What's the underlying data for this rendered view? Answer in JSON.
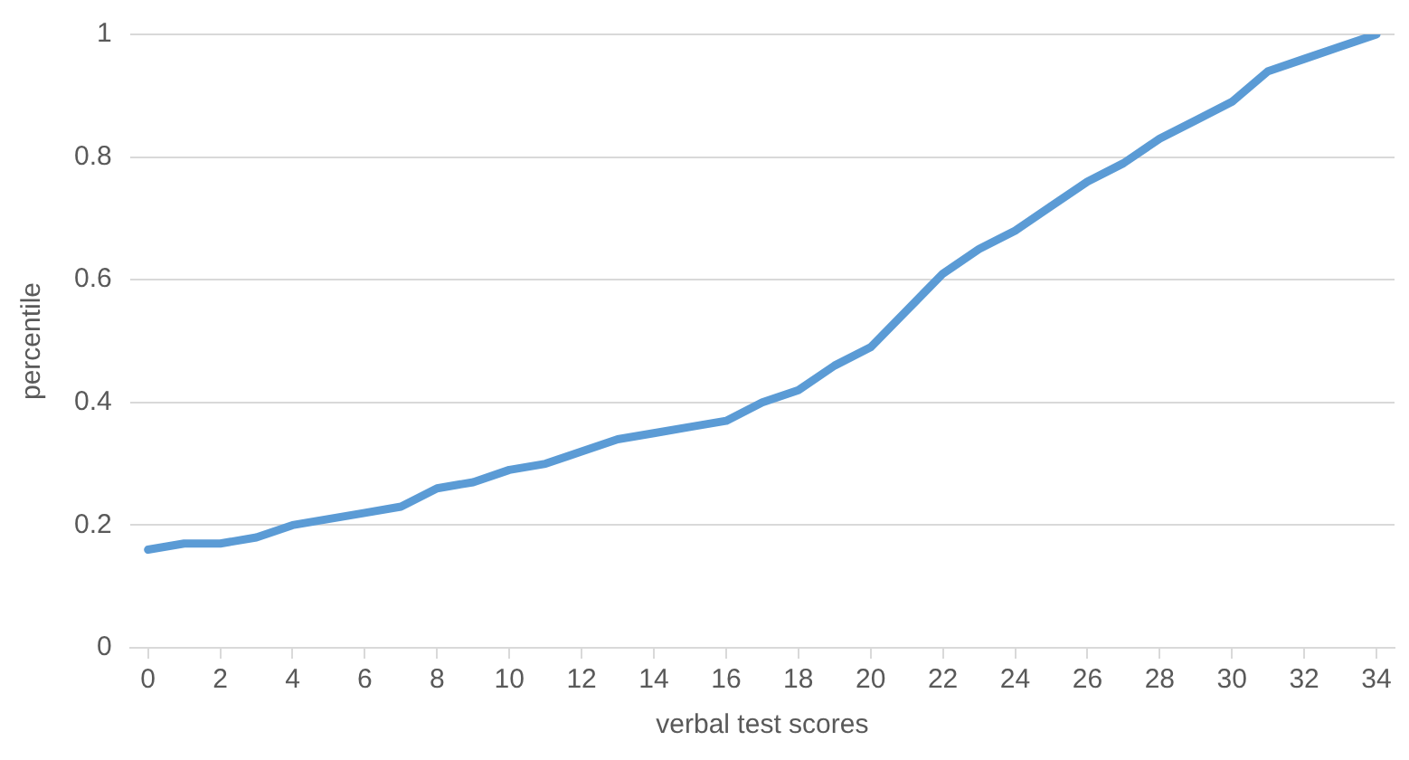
{
  "chart_data": {
    "type": "line",
    "xlabel": "verbal test scores",
    "ylabel": "percentile",
    "x": [
      0,
      1,
      2,
      3,
      4,
      5,
      6,
      7,
      8,
      9,
      10,
      11,
      12,
      13,
      14,
      15,
      16,
      17,
      18,
      19,
      20,
      21,
      22,
      23,
      24,
      25,
      26,
      27,
      28,
      29,
      30,
      31,
      32,
      33,
      34
    ],
    "series": [
      {
        "color": "#5b9bd5",
        "values": [
          0.16,
          0.17,
          0.17,
          0.18,
          0.2,
          0.21,
          0.22,
          0.23,
          0.26,
          0.27,
          0.29,
          0.3,
          0.32,
          0.34,
          0.35,
          0.36,
          0.37,
          0.4,
          0.42,
          0.46,
          0.49,
          0.55,
          0.61,
          0.65,
          0.68,
          0.72,
          0.76,
          0.79,
          0.83,
          0.86,
          0.89,
          0.94,
          0.96,
          0.98,
          1
        ]
      }
    ],
    "xlim": [
      -0.5,
      34.5
    ],
    "xticks": [
      0,
      2,
      4,
      6,
      8,
      10,
      12,
      14,
      16,
      18,
      20,
      22,
      24,
      26,
      28,
      30,
      32,
      34
    ],
    "ylim": [
      0,
      1
    ],
    "yticks": [
      0,
      0.2,
      0.4,
      0.6,
      0.8,
      1
    ],
    "grid": "y",
    "legend": false,
    "marker": "none",
    "line_style": "solid"
  }
}
